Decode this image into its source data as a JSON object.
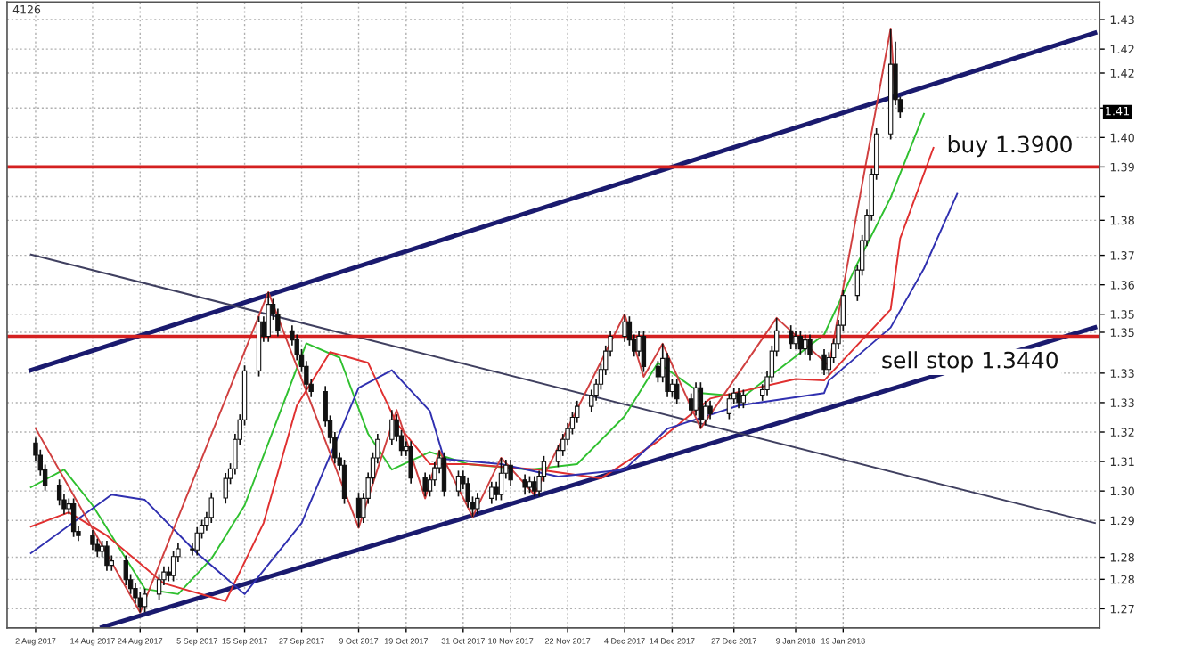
{
  "chart_data": {
    "type": "candlestick",
    "annotations": [
      "4126",
      {
        "text": "1.41",
        "y": 1.4049
      }
    ],
    "xlim": [
      "2017-07-27",
      "2018-03-14"
    ],
    "ylim": [
      1.2648,
      1.4348
    ],
    "xticks": [
      {
        "value": "2017-08-02",
        "label": "2 Aug 2017"
      },
      {
        "value": "2017-08-14",
        "label": "14 Aug 2017"
      },
      {
        "value": "2017-08-24",
        "label": "24 Aug 2017"
      },
      {
        "value": "2017-09-05",
        "label": "5 Sep 2017"
      },
      {
        "value": "2017-09-15",
        "label": "15 Sep 2017"
      },
      {
        "value": "2017-09-27",
        "label": "27 Sep 2017"
      },
      {
        "value": "2017-10-09",
        "label": "9 Oct 2017"
      },
      {
        "value": "2017-10-19",
        "label": "19 Oct 2017"
      },
      {
        "value": "2017-10-31",
        "label": "31 Oct 2017"
      },
      {
        "value": "2017-11-10",
        "label": "10 Nov 2017"
      },
      {
        "value": "2017-11-22",
        "label": "22 Nov 2017"
      },
      {
        "value": "2017-12-04",
        "label": "4 Dec 2017"
      },
      {
        "value": "2017-12-14",
        "label": "14 Dec 2017"
      },
      {
        "value": "2017-12-27",
        "label": "27 Dec 2017"
      },
      {
        "value": "2018-01-09",
        "label": "9 Jan 2018"
      },
      {
        "value": "2018-01-19",
        "label": "19 Jan 2018"
      }
    ],
    "yticks": [
      {
        "value": 1.27,
        "label": "1.27"
      },
      {
        "value": 1.278,
        "label": "1.28"
      },
      {
        "value": 1.284,
        "label": "1.28"
      },
      {
        "value": 1.294,
        "label": "1.29"
      },
      {
        "value": 1.302,
        "label": "1.30"
      },
      {
        "value": 1.31,
        "label": "1.31"
      },
      {
        "value": 1.318,
        "label": "1.32"
      },
      {
        "value": 1.326,
        "label": "1.33"
      },
      {
        "value": 1.334,
        "label": "1.33"
      },
      {
        "value": 1.3451,
        "label": "1.35"
      },
      {
        "value": 1.35,
        "label": "1.35"
      },
      {
        "value": 1.358,
        "label": "1.36"
      },
      {
        "value": 1.366,
        "label": "1.37"
      },
      {
        "value": 1.3755,
        "label": "1.38"
      },
      {
        "value": 1.382,
        "label": null
      },
      {
        "value": 1.39,
        "label": "1.39"
      },
      {
        "value": 1.398,
        "label": "1.40"
      },
      {
        "value": 1.406,
        "label": null
      },
      {
        "value": 1.4155,
        "label": "1.42"
      },
      {
        "value": 1.422,
        "label": "1.42"
      },
      {
        "value": 1.43,
        "label": "1.43"
      }
    ],
    "grid": true,
    "ref_lines": [
      {
        "axis": "y",
        "value": 1.39,
        "label": "buy 1.3900",
        "color": "#d42020"
      },
      {
        "axis": "y",
        "value": 1.344,
        "label": "sell stop 1.3440",
        "color": "#d42020"
      }
    ],
    "x": [
      "2017-08-02",
      "2017-08-03",
      "2017-08-04",
      "2017-08-07",
      "2017-08-08",
      "2017-08-09",
      "2017-08-10",
      "2017-08-11",
      "2017-08-14",
      "2017-08-15",
      "2017-08-16",
      "2017-08-17",
      "2017-08-18",
      "2017-08-21",
      "2017-08-22",
      "2017-08-23",
      "2017-08-24",
      "2017-08-25",
      "2017-08-28",
      "2017-08-29",
      "2017-08-30",
      "2017-08-31",
      "2017-09-01",
      "2017-09-04",
      "2017-09-05",
      "2017-09-06",
      "2017-09-07",
      "2017-09-08",
      "2017-09-11",
      "2017-09-12",
      "2017-09-13",
      "2017-09-14",
      "2017-09-15",
      "2017-09-18",
      "2017-09-19",
      "2017-09-20",
      "2017-09-21",
      "2017-09-22",
      "2017-09-25",
      "2017-09-26",
      "2017-09-27",
      "2017-09-28",
      "2017-09-29",
      "2017-10-02",
      "2017-10-03",
      "2017-10-04",
      "2017-10-05",
      "2017-10-06",
      "2017-10-09",
      "2017-10-10",
      "2017-10-11",
      "2017-10-12",
      "2017-10-13",
      "2017-10-16",
      "2017-10-17",
      "2017-10-18",
      "2017-10-19",
      "2017-10-20",
      "2017-10-23",
      "2017-10-24",
      "2017-10-25",
      "2017-10-26",
      "2017-10-27",
      "2017-10-30",
      "2017-10-31",
      "2017-11-01",
      "2017-11-02",
      "2017-11-03",
      "2017-11-06",
      "2017-11-07",
      "2017-11-08",
      "2017-11-09",
      "2017-11-10",
      "2017-11-13",
      "2017-11-14",
      "2017-11-15",
      "2017-11-16",
      "2017-11-17",
      "2017-11-20",
      "2017-11-21",
      "2017-11-22",
      "2017-11-23",
      "2017-11-24",
      "2017-11-27",
      "2017-11-28",
      "2017-11-29",
      "2017-11-30",
      "2017-12-01",
      "2017-12-04",
      "2017-12-05",
      "2017-12-06",
      "2017-12-07",
      "2017-12-08",
      "2017-12-11",
      "2017-12-12",
      "2017-12-13",
      "2017-12-14",
      "2017-12-15",
      "2017-12-18",
      "2017-12-19",
      "2017-12-20",
      "2017-12-21",
      "2017-12-22",
      "2017-12-26",
      "2017-12-27",
      "2017-12-28",
      "2017-12-29",
      "2018-01-02",
      "2018-01-03",
      "2018-01-04",
      "2018-01-05",
      "2018-01-08",
      "2018-01-09",
      "2018-01-10",
      "2018-01-11",
      "2018-01-12",
      "2018-01-15",
      "2018-01-16",
      "2018-01-17",
      "2018-01-18",
      "2018-01-19",
      "2018-01-22",
      "2018-01-23",
      "2018-01-24",
      "2018-01-25",
      "2018-01-26",
      "2018-01-29",
      "2018-01-30",
      "2018-01-31"
    ],
    "ohlc": [
      [
        1.315,
        1.3165,
        1.3102,
        1.3117
      ],
      [
        1.3117,
        1.3132,
        1.3062,
        1.3077
      ],
      [
        1.3077,
        1.3092,
        1.3021,
        1.3036
      ],
      [
        1.3036,
        1.3051,
        1.2981,
        1.2996
      ],
      [
        1.2996,
        1.3011,
        1.2957,
        1.2972
      ],
      [
        1.2972,
        1.3,
        1.2957,
        1.2985
      ],
      [
        1.2985,
        1.3,
        1.2895,
        1.291
      ],
      [
        1.291,
        1.2925,
        1.2884,
        1.2899
      ],
      [
        1.2899,
        1.2914,
        1.286,
        1.2875
      ],
      [
        1.2875,
        1.289,
        1.2841,
        1.2856
      ],
      [
        1.2856,
        1.2885,
        1.2841,
        1.287
      ],
      [
        1.287,
        1.2885,
        1.2803,
        1.2818
      ],
      [
        1.2818,
        1.2845,
        1.2803,
        1.283
      ],
      [
        1.283,
        1.2845,
        1.2764,
        1.2779
      ],
      [
        1.2779,
        1.2794,
        1.274,
        1.2755
      ],
      [
        1.2755,
        1.277,
        1.2715,
        1.273
      ],
      [
        1.273,
        1.2745,
        1.269,
        1.2706
      ],
      [
        1.2706,
        1.2755,
        1.2691,
        1.274
      ],
      [
        1.274,
        1.2794,
        1.2725,
        1.2779
      ],
      [
        1.2779,
        1.2815,
        1.2764,
        1.28
      ],
      [
        1.28,
        1.2815,
        1.2775,
        1.279
      ],
      [
        1.279,
        1.2857,
        1.2775,
        1.2842
      ],
      [
        1.2842,
        1.2878,
        1.2827,
        1.2863
      ],
      [
        1.2863,
        1.2878,
        1.2845,
        1.286
      ],
      [
        1.286,
        1.2921,
        1.2845,
        1.2906
      ],
      [
        1.2906,
        1.2942,
        1.2891,
        1.2927
      ],
      [
        1.2927,
        1.2963,
        1.2912,
        1.2948
      ],
      [
        1.2948,
        1.3016,
        1.2933,
        1.3001
      ],
      [
        1.3001,
        1.3069,
        1.2986,
        1.3054
      ],
      [
        1.3054,
        1.3095,
        1.3039,
        1.308
      ],
      [
        1.308,
        1.3175,
        1.3065,
        1.316
      ],
      [
        1.316,
        1.3228,
        1.3145,
        1.3213
      ],
      [
        1.3213,
        1.3361,
        1.3198,
        1.3346
      ],
      [
        1.3346,
        1.3494,
        1.3331,
        1.3479
      ],
      [
        1.3479,
        1.3494,
        1.3425,
        1.344
      ],
      [
        1.344,
        1.356,
        1.3425,
        1.3527
      ],
      [
        1.3527,
        1.3542,
        1.3485,
        1.35
      ],
      [
        1.35,
        1.3515,
        1.344,
        1.3455
      ],
      [
        1.3455,
        1.347,
        1.3415,
        1.343
      ],
      [
        1.343,
        1.3445,
        1.3375,
        1.339
      ],
      [
        1.339,
        1.3405,
        1.3343,
        1.3358
      ],
      [
        1.3358,
        1.3373,
        1.3295,
        1.331
      ],
      [
        1.331,
        1.3325,
        1.3275,
        1.329
      ],
      [
        1.329,
        1.3305,
        1.3195,
        1.321
      ],
      [
        1.321,
        1.3225,
        1.315,
        1.3165
      ],
      [
        1.3165,
        1.318,
        1.3095,
        1.311
      ],
      [
        1.311,
        1.3125,
        1.3075,
        1.309
      ],
      [
        1.309,
        1.3105,
        1.2985,
        1.3
      ],
      [
        1.3,
        1.3015,
        1.292,
        1.2948
      ],
      [
        1.2948,
        1.3015,
        1.2933,
        1.3
      ],
      [
        1.3,
        1.307,
        1.2985,
        1.3055
      ],
      [
        1.3055,
        1.3125,
        1.304,
        1.311
      ],
      [
        1.311,
        1.3175,
        1.3095,
        1.316
      ],
      [
        1.316,
        1.324,
        1.3145,
        1.3213
      ],
      [
        1.3213,
        1.3228,
        1.3155,
        1.317
      ],
      [
        1.317,
        1.3185,
        1.3115,
        1.313
      ],
      [
        1.313,
        1.3155,
        1.3115,
        1.314
      ],
      [
        1.314,
        1.3155,
        1.304,
        1.3055
      ],
      [
        1.3055,
        1.307,
        1.3005,
        1.302
      ],
      [
        1.302,
        1.3065,
        1.3005,
        1.305
      ],
      [
        1.305,
        1.3098,
        1.3035,
        1.3083
      ],
      [
        1.3083,
        1.313,
        1.3068,
        1.311
      ],
      [
        1.311,
        1.3125,
        1.3005,
        1.302
      ],
      [
        1.302,
        1.3075,
        1.3005,
        1.306
      ],
      [
        1.306,
        1.3075,
        1.3025,
        1.304
      ],
      [
        1.304,
        1.3055,
        1.2975,
        1.299
      ],
      [
        1.299,
        1.3005,
        1.295,
        1.2972
      ],
      [
        1.2972,
        1.3015,
        1.2957,
        1.3
      ],
      [
        1.3,
        1.3045,
        1.2985,
        1.303
      ],
      [
        1.303,
        1.3045,
        1.2995,
        1.301
      ],
      [
        1.301,
        1.311,
        1.2995,
        1.3068
      ],
      [
        1.3068,
        1.3105,
        1.3053,
        1.309
      ],
      [
        1.309,
        1.3105,
        1.3035,
        1.305
      ],
      [
        1.305,
        1.3065,
        1.301,
        1.303
      ],
      [
        1.303,
        1.306,
        1.3015,
        1.3045
      ],
      [
        1.3045,
        1.306,
        1.3005,
        1.302
      ],
      [
        1.302,
        1.3075,
        1.3005,
        1.306
      ],
      [
        1.306,
        1.3115,
        1.3045,
        1.31
      ],
      [
        1.31,
        1.3145,
        1.3085,
        1.313
      ],
      [
        1.313,
        1.3175,
        1.3115,
        1.316
      ],
      [
        1.316,
        1.3204,
        1.3145,
        1.3189
      ],
      [
        1.3189,
        1.3235,
        1.3174,
        1.322
      ],
      [
        1.322,
        1.3265,
        1.3205,
        1.325
      ],
      [
        1.325,
        1.3295,
        1.3235,
        1.328
      ],
      [
        1.328,
        1.3325,
        1.3265,
        1.331
      ],
      [
        1.331,
        1.3365,
        1.3295,
        1.335
      ],
      [
        1.335,
        1.3415,
        1.3335,
        1.34
      ],
      [
        1.34,
        1.3455,
        1.3385,
        1.344
      ],
      [
        1.344,
        1.35,
        1.3425,
        1.3479
      ],
      [
        1.3479,
        1.3494,
        1.3415,
        1.343
      ],
      [
        1.343,
        1.3445,
        1.3385,
        1.34
      ],
      [
        1.34,
        1.3455,
        1.3385,
        1.344
      ],
      [
        1.344,
        1.3455,
        1.3343,
        1.3358
      ],
      [
        1.3358,
        1.3373,
        1.3315,
        1.333
      ],
      [
        1.333,
        1.342,
        1.3315,
        1.338
      ],
      [
        1.338,
        1.3395,
        1.3275,
        1.329
      ],
      [
        1.329,
        1.3325,
        1.3275,
        1.331
      ],
      [
        1.331,
        1.3325,
        1.3255,
        1.327
      ],
      [
        1.327,
        1.3285,
        1.3225,
        1.324
      ],
      [
        1.324,
        1.3315,
        1.3225,
        1.33
      ],
      [
        1.33,
        1.3315,
        1.319,
        1.3213
      ],
      [
        1.3213,
        1.3265,
        1.3198,
        1.325
      ],
      [
        1.325,
        1.3265,
        1.3215,
        1.323
      ],
      [
        1.323,
        1.3285,
        1.3215,
        1.327
      ],
      [
        1.327,
        1.3301,
        1.3255,
        1.3286
      ],
      [
        1.3286,
        1.3301,
        1.3245,
        1.326
      ],
      [
        1.326,
        1.3295,
        1.3245,
        1.328
      ],
      [
        1.328,
        1.331,
        1.3265,
        1.3295
      ],
      [
        1.3295,
        1.3345,
        1.328,
        1.333
      ],
      [
        1.333,
        1.3415,
        1.3315,
        1.34
      ],
      [
        1.34,
        1.349,
        1.3385,
        1.3455
      ],
      [
        1.3455,
        1.347,
        1.3405,
        1.342
      ],
      [
        1.342,
        1.3455,
        1.3405,
        1.344
      ],
      [
        1.344,
        1.3455,
        1.3391,
        1.3406
      ],
      [
        1.3406,
        1.3445,
        1.3391,
        1.343
      ],
      [
        1.343,
        1.3445,
        1.3375,
        1.339
      ],
      [
        1.339,
        1.3405,
        1.3335,
        1.335
      ],
      [
        1.335,
        1.3397,
        1.3335,
        1.3382
      ],
      [
        1.3382,
        1.3435,
        1.3367,
        1.342
      ],
      [
        1.342,
        1.3485,
        1.3405,
        1.347
      ],
      [
        1.347,
        1.3566,
        1.3455,
        1.3551
      ],
      [
        1.3551,
        1.3635,
        1.3536,
        1.362
      ],
      [
        1.362,
        1.3715,
        1.3605,
        1.37
      ],
      [
        1.37,
        1.3784,
        1.3685,
        1.3769
      ],
      [
        1.3769,
        1.3895,
        1.3754,
        1.388
      ],
      [
        1.388,
        1.4005,
        1.3865,
        1.399
      ],
      [
        1.399,
        1.4276,
        1.3975,
        1.4179
      ],
      [
        1.4179,
        1.424,
        1.4068,
        1.4083
      ],
      [
        1.4083,
        1.409,
        1.4034,
        1.4049
      ]
    ],
    "series": [
      {
        "type": "line",
        "color": "#1a1a6e",
        "x": [
          "2017-08-01",
          "2018-03-13"
        ],
        "values": [
          1.3348,
          1.4264
        ]
      },
      {
        "type": "line",
        "color": "#1a1a6e",
        "x": [
          "2017-08-16",
          "2018-03-13"
        ],
        "values": [
          1.265,
          1.3464
        ]
      },
      {
        "type": "line",
        "color": "#404060",
        "x": [
          "2017-08-01",
          "2018-03-13"
        ],
        "values": [
          1.3662,
          1.2933
        ]
      },
      {
        "type": "line",
        "color": "#30c030",
        "x": [
          "2017-08-01",
          "2017-08-08",
          "2017-08-14",
          "2017-08-25",
          "2017-09-01",
          "2017-09-08",
          "2017-09-15",
          "2017-09-25",
          "2017-09-28",
          "2017-10-05",
          "2017-10-11",
          "2017-10-16",
          "2017-10-24",
          "2017-11-01",
          "2017-11-14",
          "2017-11-24",
          "2017-12-04",
          "2017-12-11",
          "2017-12-20",
          "2017-12-29",
          "2018-01-15",
          "2018-01-22",
          "2018-01-29",
          "2018-02-05"
        ],
        "values": [
          1.303,
          1.3078,
          1.2981,
          1.2754,
          1.274,
          1.2836,
          1.2981,
          1.332,
          1.3421,
          1.3382,
          1.3175,
          1.3078,
          1.3126,
          1.3093,
          1.3078,
          1.3093,
          1.3223,
          1.3368,
          1.3286,
          1.3276,
          1.3445,
          1.3638,
          1.3817,
          1.4044
        ]
      },
      {
        "type": "line",
        "color": "#e03030",
        "x": [
          "2017-08-01",
          "2017-08-09",
          "2017-08-17",
          "2017-08-29",
          "2017-09-11",
          "2017-09-19",
          "2017-09-26",
          "2017-10-03",
          "2017-10-11",
          "2017-10-17",
          "2017-10-24",
          "2017-11-01",
          "2017-11-16",
          "2017-11-29",
          "2017-12-11",
          "2017-12-22",
          "2018-01-09",
          "2018-01-15",
          "2018-01-29",
          "2018-01-31",
          "2018-02-07"
        ],
        "values": [
          1.2923,
          1.2962,
          1.2899,
          1.2769,
          1.2721,
          1.2933,
          1.3252,
          1.3397,
          1.3368,
          1.3204,
          1.3093,
          1.3093,
          1.3078,
          1.3054,
          1.3155,
          1.3271,
          1.3324,
          1.332,
          1.3513,
          1.3706,
          1.3952
        ]
      },
      {
        "type": "line",
        "color": "#3030b0",
        "x": [
          "2017-08-01",
          "2017-08-18",
          "2017-08-25",
          "2017-09-05",
          "2017-09-15",
          "2017-09-27",
          "2017-10-09",
          "2017-10-16",
          "2017-10-24",
          "2017-10-27",
          "2017-11-08",
          "2017-11-20",
          "2017-12-04",
          "2017-12-13",
          "2017-12-28",
          "2018-01-15",
          "2018-01-16",
          "2018-01-29",
          "2018-02-05",
          "2018-02-12"
        ],
        "values": [
          1.2851,
          1.301,
          1.2996,
          1.2851,
          1.274,
          1.2933,
          1.33,
          1.3348,
          1.3237,
          1.3107,
          1.3093,
          1.3059,
          1.3078,
          1.3189,
          1.3252,
          1.3286,
          1.332,
          1.3464,
          1.3624,
          1.3827
        ]
      },
      {
        "type": "line",
        "color": "#d04040",
        "x": [
          "2017-08-02",
          "2017-08-24",
          "2017-09-20",
          "2017-10-09",
          "2017-10-17",
          "2017-10-23",
          "2017-10-26",
          "2017-11-02",
          "2017-11-08",
          "2017-11-15",
          "2017-12-04",
          "2017-12-08",
          "2017-12-12",
          "2017-12-20",
          "2018-01-05",
          "2018-01-16",
          "2018-01-29",
          "2018-01-30"
        ],
        "values": [
          1.319,
          1.269,
          1.356,
          1.292,
          1.324,
          1.3,
          1.313,
          1.295,
          1.311,
          1.301,
          1.35,
          1.333,
          1.342,
          1.319,
          1.349,
          1.336,
          1.4276,
          1.4083
        ]
      }
    ]
  }
}
